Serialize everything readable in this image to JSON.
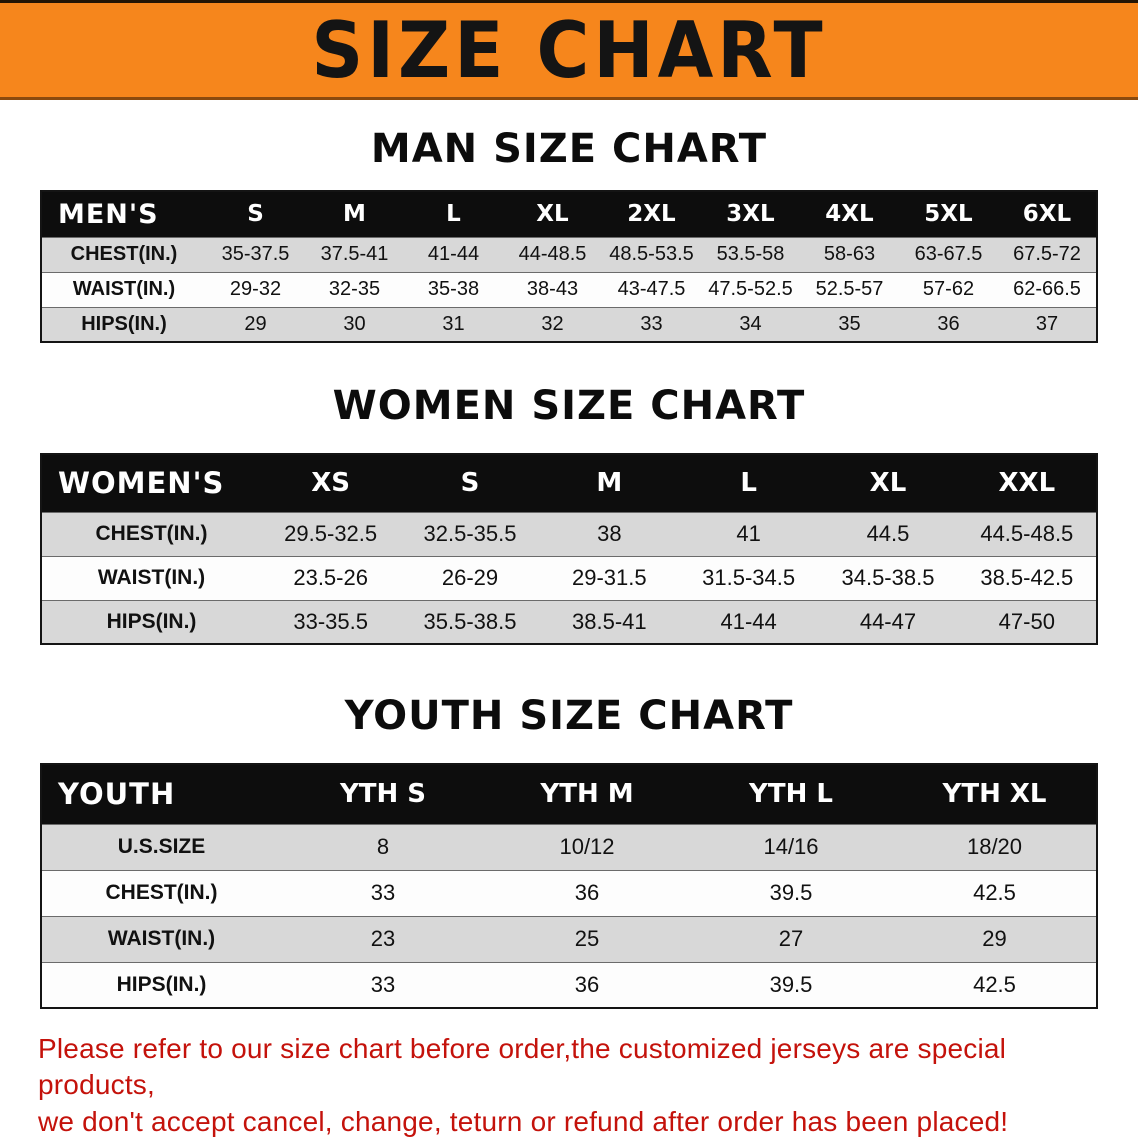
{
  "banner": {
    "title": "SIZE CHART",
    "bg_color": "#F6861C"
  },
  "sections": [
    {
      "id": "men",
      "heading": "MAN SIZE CHART",
      "table": {
        "header": [
          "MEN'S",
          "S",
          "M",
          "L",
          "XL",
          "2XL",
          "3XL",
          "4XL",
          "5XL",
          "6XL"
        ],
        "rows": [
          [
            "CHEST(IN.)",
            "35-37.5",
            "37.5-41",
            "41-44",
            "44-48.5",
            "48.5-53.5",
            "53.5-58",
            "58-63",
            "63-67.5",
            "67.5-72"
          ],
          [
            "WAIST(IN.)",
            "29-32",
            "32-35",
            "35-38",
            "38-43",
            "43-47.5",
            "47.5-52.5",
            "52.5-57",
            "57-62",
            "62-66.5"
          ],
          [
            "HIPS(IN.)",
            "29",
            "30",
            "31",
            "32",
            "33",
            "34",
            "35",
            "36",
            "37"
          ]
        ]
      }
    },
    {
      "id": "women",
      "heading": "WOMEN SIZE CHART",
      "table": {
        "header": [
          "WOMEN'S",
          "XS",
          "S",
          "M",
          "L",
          "XL",
          "XXL"
        ],
        "rows": [
          [
            "CHEST(IN.)",
            "29.5-32.5",
            "32.5-35.5",
            "38",
            "41",
            "44.5",
            "44.5-48.5"
          ],
          [
            "WAIST(IN.)",
            "23.5-26",
            "26-29",
            "29-31.5",
            "31.5-34.5",
            "34.5-38.5",
            "38.5-42.5"
          ],
          [
            "HIPS(IN.)",
            "33-35.5",
            "35.5-38.5",
            "38.5-41",
            "41-44",
            "44-47",
            "47-50"
          ]
        ]
      }
    },
    {
      "id": "youth",
      "heading": "YOUTH SIZE CHART",
      "table": {
        "header": [
          "YOUTH",
          "YTH S",
          "YTH M",
          "YTH L",
          "YTH XL"
        ],
        "rows": [
          [
            "U.S.SIZE",
            "8",
            "10/12",
            "14/16",
            "18/20"
          ],
          [
            "CHEST(IN.)",
            "33",
            "36",
            "39.5",
            "42.5"
          ],
          [
            "WAIST(IN.)",
            "23",
            "25",
            "27",
            "29"
          ],
          [
            "HIPS(IN.)",
            "33",
            "36",
            "39.5",
            "42.5"
          ]
        ]
      }
    }
  ],
  "disclaimer": {
    "color": "#c4120b",
    "lines": [
      "Please refer to our size chart before order,the customized jerseys are special products,",
      "we don't accept cancel, change, teturn or refund after order has been placed!"
    ]
  }
}
